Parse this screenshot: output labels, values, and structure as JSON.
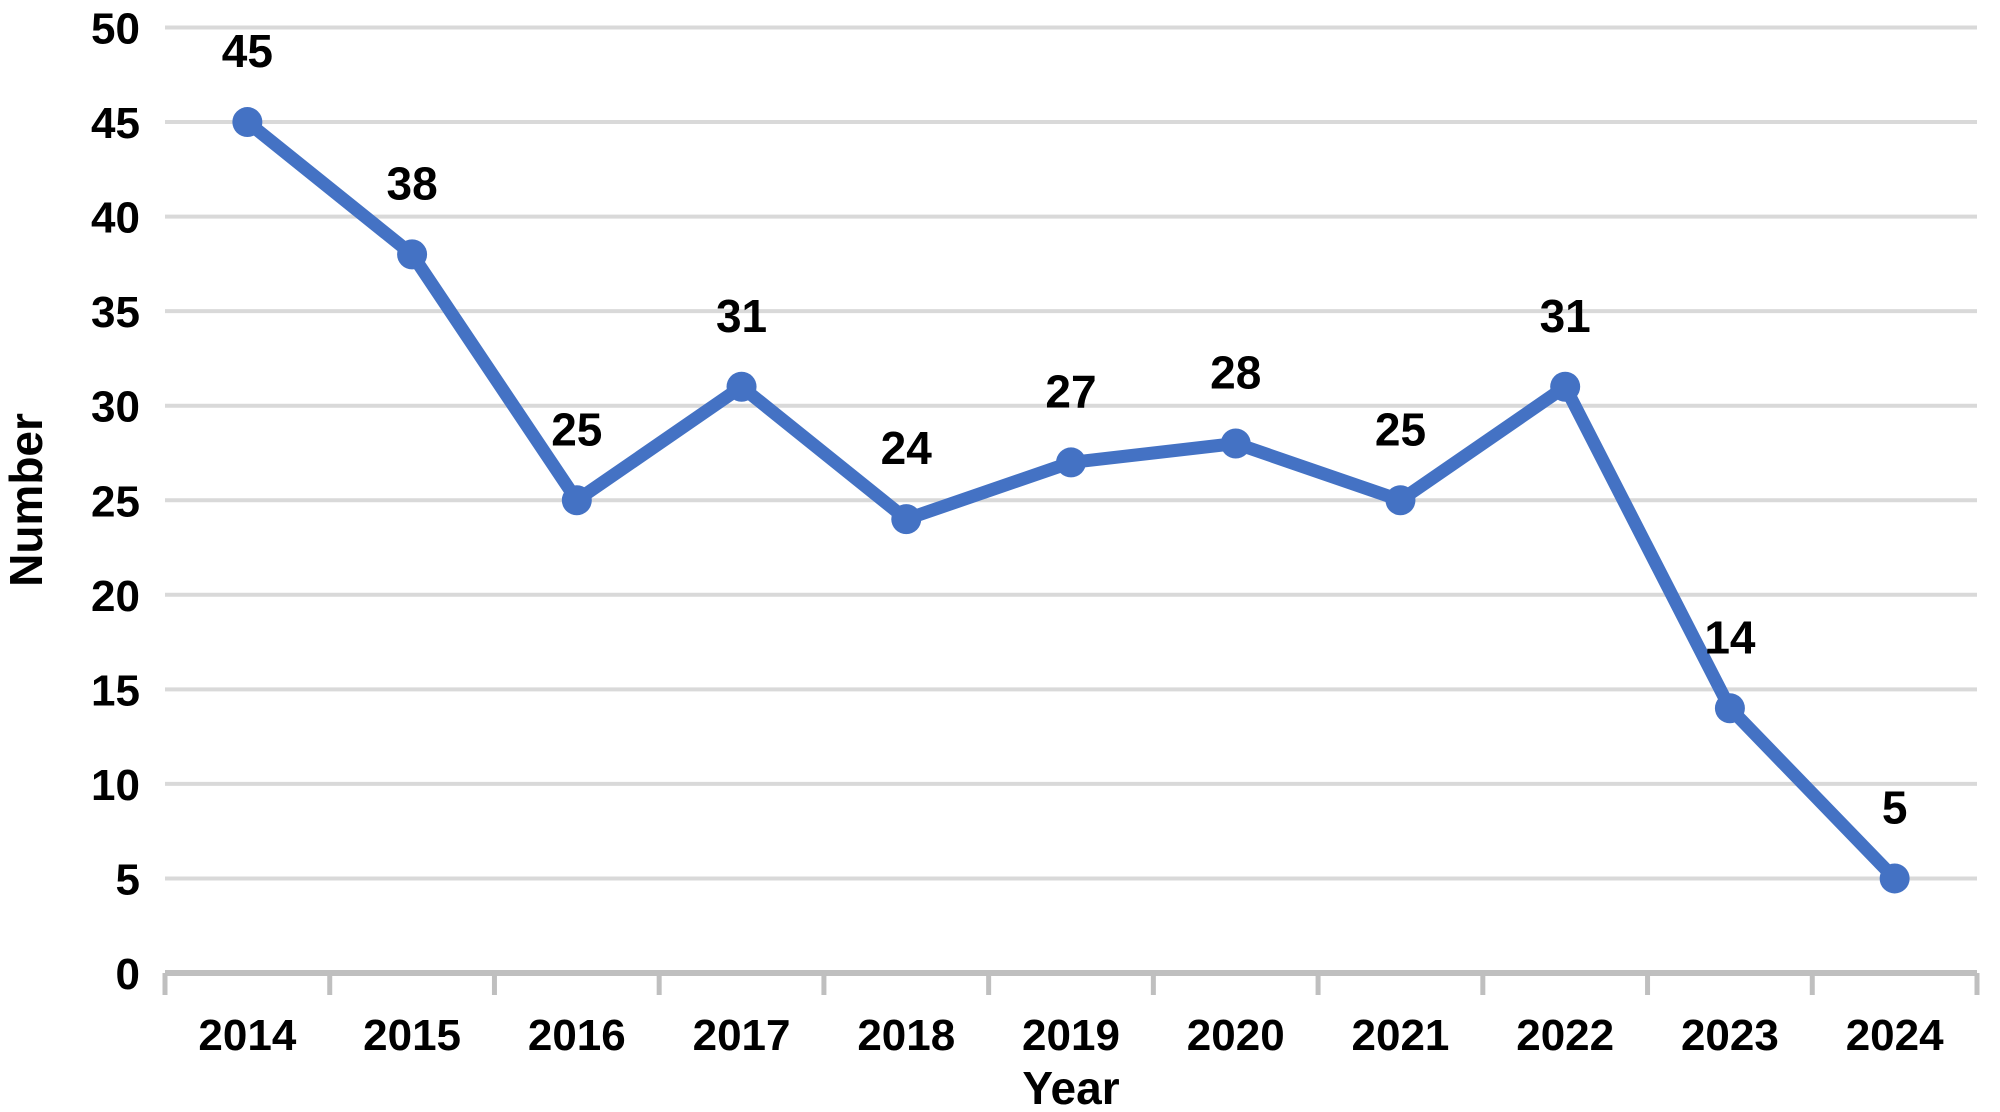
{
  "chart_data": {
    "type": "line",
    "title": "",
    "xlabel": "Year",
    "ylabel": "Number",
    "categories": [
      "2014",
      "2015",
      "2016",
      "2017",
      "2018",
      "2019",
      "2020",
      "2021",
      "2022",
      "2023",
      "2024"
    ],
    "series": [
      {
        "name": "Number",
        "values": [
          45,
          38,
          25,
          31,
          24,
          27,
          28,
          25,
          31,
          14,
          5
        ],
        "color": "#4472C4"
      }
    ],
    "data_labels": [
      45,
      38,
      25,
      31,
      24,
      27,
      28,
      25,
      31,
      14,
      5
    ],
    "ylim": [
      0,
      50
    ],
    "yticks": [
      0,
      5,
      10,
      15,
      20,
      25,
      30,
      35,
      40,
      45,
      50
    ],
    "grid": true,
    "legend_position": "none",
    "show_data_labels": true,
    "colors": {
      "line": "#4472C4",
      "marker": "#4472C4",
      "gridline": "#D9D9D9",
      "axis": "#BFBFBF",
      "text": "#000000",
      "background": "#FFFFFF"
    }
  }
}
